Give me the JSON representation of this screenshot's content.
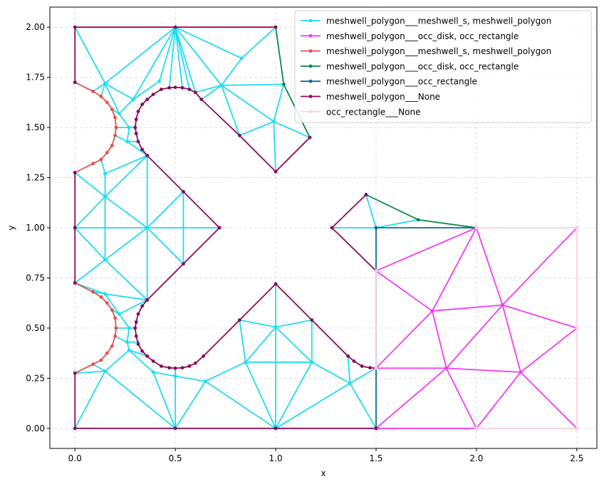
{
  "chart_data": {
    "type": "line",
    "xlabel": "x",
    "ylabel": "y",
    "xlim": [
      -0.125,
      2.6
    ],
    "ylim": [
      -0.1,
      2.1
    ],
    "grid": true,
    "legend": "upper right",
    "xticks": [
      {
        "value": 0,
        "label": "0.0"
      },
      {
        "value": 0.5,
        "label": "0.5"
      },
      {
        "value": 1,
        "label": "1.0"
      },
      {
        "value": 1.5,
        "label": "1.5"
      },
      {
        "value": 2,
        "label": "2.0"
      },
      {
        "value": 2.5,
        "label": "2.5"
      }
    ],
    "yticks": [
      {
        "value": 0,
        "label": "0.00"
      },
      {
        "value": 0.25,
        "label": "0.25"
      },
      {
        "value": 0.5,
        "label": "0.50"
      },
      {
        "value": 0.75,
        "label": "0.75"
      },
      {
        "value": 1,
        "label": "1.00"
      },
      {
        "value": 1.25,
        "label": "1.25"
      },
      {
        "value": 1.5,
        "label": "1.50"
      },
      {
        "value": 1.75,
        "label": "1.75"
      },
      {
        "value": 2,
        "label": "2.00"
      }
    ],
    "series": [
      {
        "name": "meshwell_polygon___meshwell_s, meshwell_polygon",
        "color": "#1fdcf2",
        "x": [
          0,
          0.15,
          0.5,
          0.29,
          0.15,
          null,
          0.29,
          0.42,
          0.5,
          0.47,
          null,
          0.5,
          0.535,
          null,
          0.5,
          0.57,
          null,
          0.6,
          0.5,
          0.73,
          0.6,
          null,
          0.5,
          0.83,
          1,
          null,
          0.83,
          0.73,
          1.04,
          0.99,
          0.73,
          0.82,
          0.99,
          1,
          null,
          0.99,
          1.17,
          null,
          0.73,
          0.63,
          null,
          0.09,
          0.15,
          0.13,
          null,
          0.15,
          0.22,
          0.29,
          null,
          0.185,
          0.22,
          0.27,
          0.3,
          null,
          0.205,
          0.27,
          0.26,
          0.2,
          null,
          0.315,
          0.26,
          0.36,
          0.15,
          0.13,
          null,
          0,
          0.15,
          0.15,
          null,
          0.36,
          0.15,
          0.36,
          0.36,
          null,
          0,
          0.15,
          0.15,
          0,
          0.36,
          0.15,
          0,
          null,
          0.15,
          0.36,
          0.36,
          0.54,
          0.54,
          0.36,
          0.72,
          null,
          0,
          0.15,
          0.36,
          null,
          0.09,
          0.15,
          0.22,
          0.36,
          null,
          0.185,
          0.22,
          0.27,
          0.3,
          null,
          0.205,
          0.27,
          0.26,
          0.2,
          null,
          0.315,
          0.26,
          0.27,
          0.36,
          null,
          0.09,
          0.15,
          0.27,
          0.39,
          0.5,
          0.65,
          0.85,
          1.18,
          1.37,
          1.5,
          null,
          0,
          0.15,
          0,
          null,
          0.15,
          0.5,
          0.39,
          null,
          0.5,
          0.5,
          0.5,
          null,
          0.5,
          0.65,
          1,
          0.85,
          0.82,
          null,
          0.85,
          1,
          1,
          null,
          0.82,
          1,
          1.18,
          1.18,
          1,
          null,
          1,
          1,
          null,
          1,
          1.18,
          null,
          1,
          1.37,
          1.5,
          null,
          1.37,
          1.36,
          null,
          1.45,
          1.5,
          1.28,
          null,
          1.5,
          1.71
        ],
        "values": [
          2,
          1.72,
          2,
          1.64,
          1.72,
          null,
          1.64,
          1.73,
          2,
          1.698,
          null,
          2,
          1.698,
          null,
          2,
          1.69,
          null,
          1.675,
          2,
          1.71,
          1.675,
          null,
          2,
          1.845,
          2,
          null,
          1.845,
          1.71,
          1.715,
          1.53,
          1.71,
          1.46,
          1.53,
          1.28,
          null,
          1.53,
          1.45,
          null,
          1.71,
          1.64,
          null,
          1.68,
          1.72,
          1.655,
          null,
          1.72,
          1.57,
          1.64,
          null,
          1.59,
          1.57,
          1.5,
          1.5,
          null,
          1.5,
          1.5,
          1.43,
          1.46,
          null,
          1.43,
          1.43,
          1.36,
          1.27,
          1.34,
          null,
          1.275,
          1.155,
          1.27,
          null,
          1.36,
          1.155,
          1,
          1.36,
          null,
          1,
          1.155,
          0.84,
          1,
          1,
          0.84,
          0.725,
          null,
          0.84,
          0.64,
          1,
          1.18,
          0.82,
          1,
          1,
          null,
          0.725,
          0.67,
          0.64,
          null,
          0.68,
          0.67,
          0.57,
          0.64,
          null,
          0.59,
          0.57,
          0.5,
          0.5,
          null,
          0.5,
          0.5,
          0.43,
          0.46,
          null,
          0.43,
          0.43,
          0.39,
          0.36,
          null,
          0.32,
          0.285,
          0.39,
          0.28,
          0.26,
          0.235,
          0.33,
          0.33,
          0.225,
          0.3,
          null,
          0.275,
          0.285,
          0,
          null,
          0.285,
          0,
          0.28,
          null,
          0.3,
          0.26,
          0,
          null,
          0,
          0.235,
          0,
          0.33,
          0.54,
          null,
          0.33,
          0.505,
          0.72,
          null,
          0.54,
          0.505,
          0.54,
          0.33,
          0.505,
          null,
          0,
          0.505,
          null,
          0,
          0.33,
          null,
          0,
          0.225,
          0,
          null,
          0.225,
          0.36,
          null,
          1.165,
          1,
          1,
          null,
          1,
          1.04
        ]
      },
      {
        "name": "meshwell_polygon___occ_disk, occ_rectangle",
        "color": "#f43af4",
        "x": [
          1.5,
          2,
          1.78,
          1.5,
          null,
          2,
          2.13,
          2.5,
          null,
          1.78,
          2.13,
          2.5,
          2.22,
          2.5,
          null,
          2.13,
          2.22,
          1.85,
          2.13,
          null,
          1.5,
          1.85,
          1.78,
          1.5,
          null,
          1.5,
          1.85,
          2,
          2.22,
          null,
          1.5,
          2
        ],
        "values": [
          0.785,
          1,
          0.585,
          0.785,
          null,
          1,
          0.615,
          1,
          null,
          0.585,
          0.615,
          0.5,
          0.28,
          0,
          null,
          0.615,
          0.28,
          0.3,
          0.615,
          null,
          0.3,
          0.3,
          0.585,
          0.3,
          null,
          0,
          0.3,
          0,
          0.28,
          null,
          0,
          0
        ]
      },
      {
        "name": "meshwell_polygon___meshwell_s, meshwell_polygon",
        "color": "#e8504a",
        "x": [
          0,
          0.09,
          0.13,
          0.16,
          0.185,
          0.2,
          0.205,
          0.2,
          0.185,
          0.16,
          0.13,
          0.09,
          0,
          null,
          0,
          0.09,
          0.13,
          0.16,
          0.185,
          0.2,
          0.205,
          0.2,
          0.185,
          0.16,
          0.13,
          0.09,
          0
        ],
        "values": [
          1.725,
          1.68,
          1.655,
          1.625,
          1.59,
          1.55,
          1.5,
          1.46,
          1.41,
          1.375,
          1.34,
          1.32,
          1.275,
          null,
          0.725,
          0.68,
          0.655,
          0.625,
          0.59,
          0.55,
          0.5,
          0.46,
          0.41,
          0.375,
          0.34,
          0.32,
          0.275
        ]
      },
      {
        "name": "meshwell_polygon___occ_disk, occ_rectangle",
        "color": "#08894a",
        "x": [
          1.17,
          1.04,
          1,
          null,
          1.45,
          1.71,
          2
        ],
        "values": [
          1.45,
          1.715,
          2,
          null,
          1.165,
          1.04,
          1
        ]
      },
      {
        "name": "meshwell_polygon___occ_rectangle",
        "color": "#0b6a98",
        "x": [
          1.5,
          1.5,
          null,
          1.5,
          2
        ],
        "values": [
          0,
          1,
          null,
          1,
          1
        ]
      },
      {
        "name": "meshwell_polygon___None",
        "color": "#8a0c5a",
        "x": [
          0,
          0,
          0.5,
          1,
          null,
          0.36,
          0.335,
          0.315,
          0.305,
          0.3,
          0.305,
          0.315,
          0.335,
          0.36,
          0.39,
          0.43,
          0.47,
          0.5,
          0.535,
          0.57,
          0.6,
          0.63,
          0.82,
          1,
          1.17,
          null,
          0,
          0,
          0,
          null,
          0.36,
          0.54,
          0.72,
          0.54,
          0.36,
          null,
          0.36,
          0.335,
          0.315,
          0.305,
          0.3,
          0.305,
          0.315,
          0.335,
          0.36,
          0.39,
          0.43,
          0.47,
          0.5,
          0.535,
          0.57,
          0.6,
          0.64,
          0.82,
          1,
          1.18,
          1.36,
          1.39,
          1.43,
          1.47,
          1.5,
          null,
          0,
          0,
          0.5,
          1,
          1.5,
          null,
          1.45,
          1.28,
          1.5
        ],
        "values": [
          1.725,
          2,
          2,
          2,
          null,
          1.36,
          1.39,
          1.43,
          1.47,
          1.5,
          1.54,
          1.58,
          1.615,
          1.64,
          1.665,
          1.69,
          1.698,
          1.7,
          1.698,
          1.69,
          1.675,
          1.64,
          1.46,
          1.28,
          1.45,
          null,
          1.275,
          1,
          0.725,
          null,
          1.36,
          1.18,
          1,
          0.82,
          0.64,
          null,
          0.64,
          0.61,
          0.57,
          0.53,
          0.5,
          0.46,
          0.42,
          0.385,
          0.36,
          0.335,
          0.31,
          0.302,
          0.3,
          0.302,
          0.31,
          0.325,
          0.36,
          0.54,
          0.72,
          0.54,
          0.36,
          0.335,
          0.31,
          0.302,
          0.3,
          null,
          0.275,
          0,
          0,
          0,
          0,
          null,
          1.165,
          1,
          0.785
        ]
      },
      {
        "name": "occ_rectangle___None",
        "color": "#ffcde1",
        "x": [
          1.5,
          1.5,
          null,
          2,
          2.5,
          2.5,
          2.5,
          2
        ],
        "values": [
          0.3,
          0.785,
          null,
          1,
          1,
          0.5,
          0,
          0
        ]
      }
    ]
  }
}
